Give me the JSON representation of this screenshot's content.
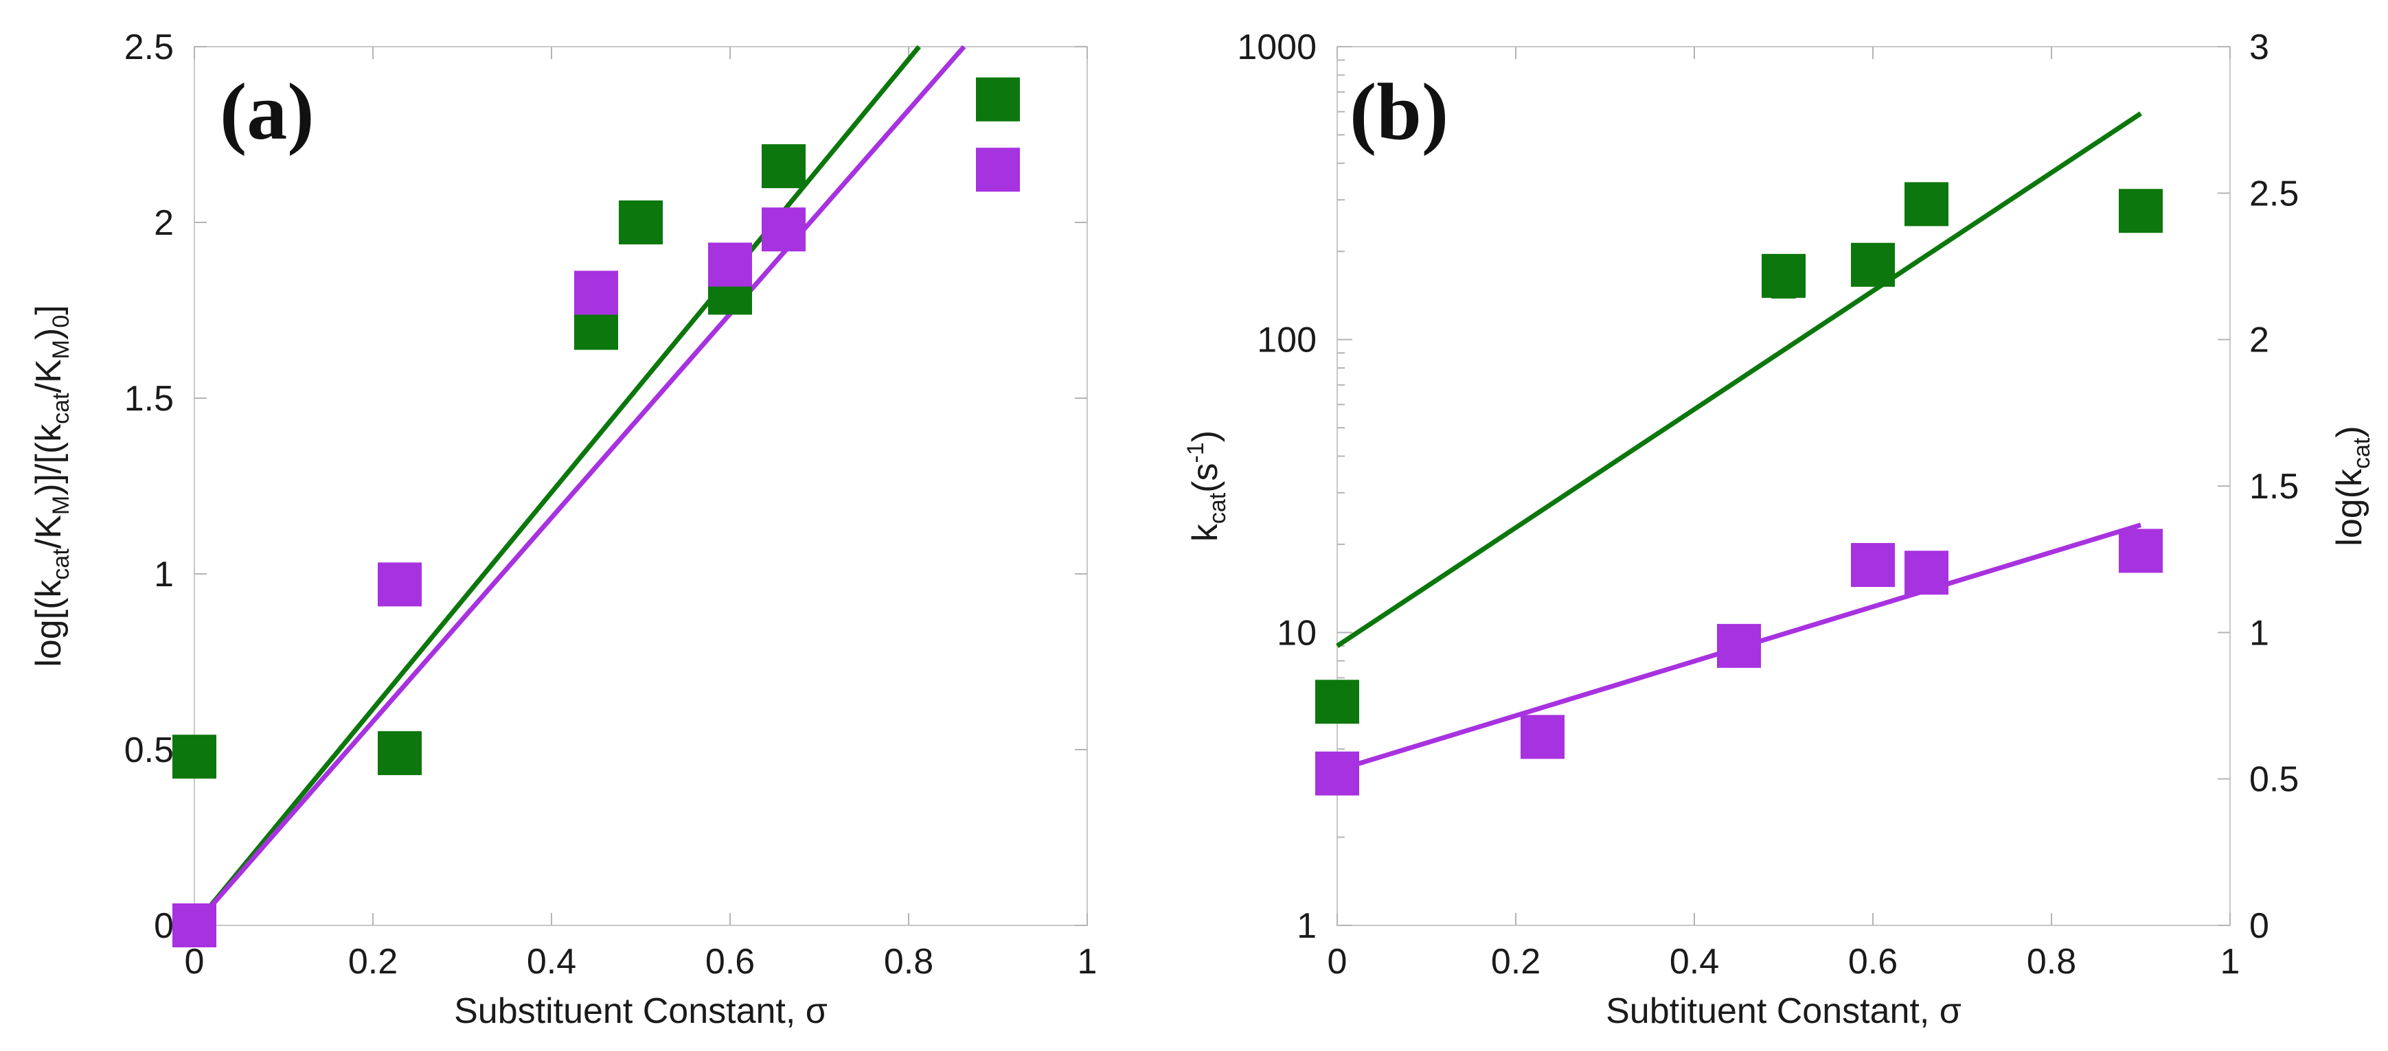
{
  "colors": {
    "green": "#0c770c",
    "purple": "#a732df"
  },
  "chart_data": [
    {
      "type": "scatter",
      "panel_label": "(a)",
      "xlabel": "Substituent Constant, σ",
      "ylabel_parts": [
        "log[(k",
        "cat",
        "/K",
        "M",
        ")]/[(k",
        "cat",
        "/K",
        "M",
        ")",
        "0",
        "]"
      ],
      "xlim": [
        0,
        1
      ],
      "ylim": [
        0,
        2.5
      ],
      "x_ticks": [
        "0",
        "0.2",
        "0.4",
        "0.6",
        "0.8",
        "1"
      ],
      "y_ticks": [
        "0",
        "0.5",
        "1",
        "1.5",
        "2",
        "2.5"
      ],
      "series": [
        {
          "name": "green",
          "color": "#0c770c",
          "points": [
            [
              0,
              0.48
            ],
            [
              0.23,
              0.49
            ],
            [
              0.45,
              1.7
            ],
            [
              0.5,
              2.0
            ],
            [
              0.6,
              1.8
            ],
            [
              0.66,
              2.16
            ],
            [
              0.9,
              2.35
            ],
            [
              0,
              0.0
            ]
          ],
          "fit": {
            "slope": 3.08,
            "intercept": 0.0
          }
        },
        {
          "name": "purple",
          "color": "#a732df",
          "points": [
            [
              0,
              0.0
            ],
            [
              0.23,
              0.97
            ],
            [
              0.45,
              1.8
            ],
            [
              0.6,
              1.88
            ],
            [
              0.66,
              1.98
            ],
            [
              0.9,
              2.15
            ]
          ],
          "fit": {
            "slope": 2.9,
            "intercept": 0.0
          }
        }
      ]
    },
    {
      "type": "scatter",
      "panel_label": "(b)",
      "xlabel": "Subtituent Constant, σ",
      "ylabel_left_parts": [
        "k",
        "cat",
        "(s",
        "-1",
        ")"
      ],
      "ylabel_right_parts": [
        "log(k",
        "cat",
        ")"
      ],
      "xlim": [
        0,
        1
      ],
      "ylim": [
        1,
        1000
      ],
      "yscale": "log",
      "right_ylim": [
        0,
        3
      ],
      "x_ticks": [
        "0",
        "0.2",
        "0.4",
        "0.6",
        "0.8",
        "1"
      ],
      "y_ticks": [
        "1",
        "10",
        "100",
        "1000"
      ],
      "right_y_ticks": [
        "0",
        "0.5",
        "1",
        "1.5",
        "2",
        "2.5",
        "3"
      ],
      "series": [
        {
          "name": "green",
          "color": "#0c770c",
          "points": [
            [
              0,
              5.8
            ],
            [
              0.5,
              165
            ],
            [
              0.6,
              180
            ],
            [
              0.66,
              290
            ],
            [
              0.9,
              275
            ]
          ],
          "error_bars": [
            {
              "x": 0.5,
              "low": 140,
              "high": 190
            }
          ],
          "fit": {
            "log_slope": 2.02,
            "log_intercept": 0.954,
            "x_end": 0.9
          }
        },
        {
          "name": "purple",
          "color": "#a732df",
          "points": [
            [
              0,
              3.3
            ],
            [
              0.23,
              4.4
            ],
            [
              0.45,
              9.0
            ],
            [
              0.6,
              17
            ],
            [
              0.66,
              16
            ],
            [
              0.9,
              19
            ]
          ],
          "fit": {
            "log_slope": 0.93,
            "log_intercept": 0.53,
            "x_end": 0.9
          }
        }
      ]
    }
  ]
}
